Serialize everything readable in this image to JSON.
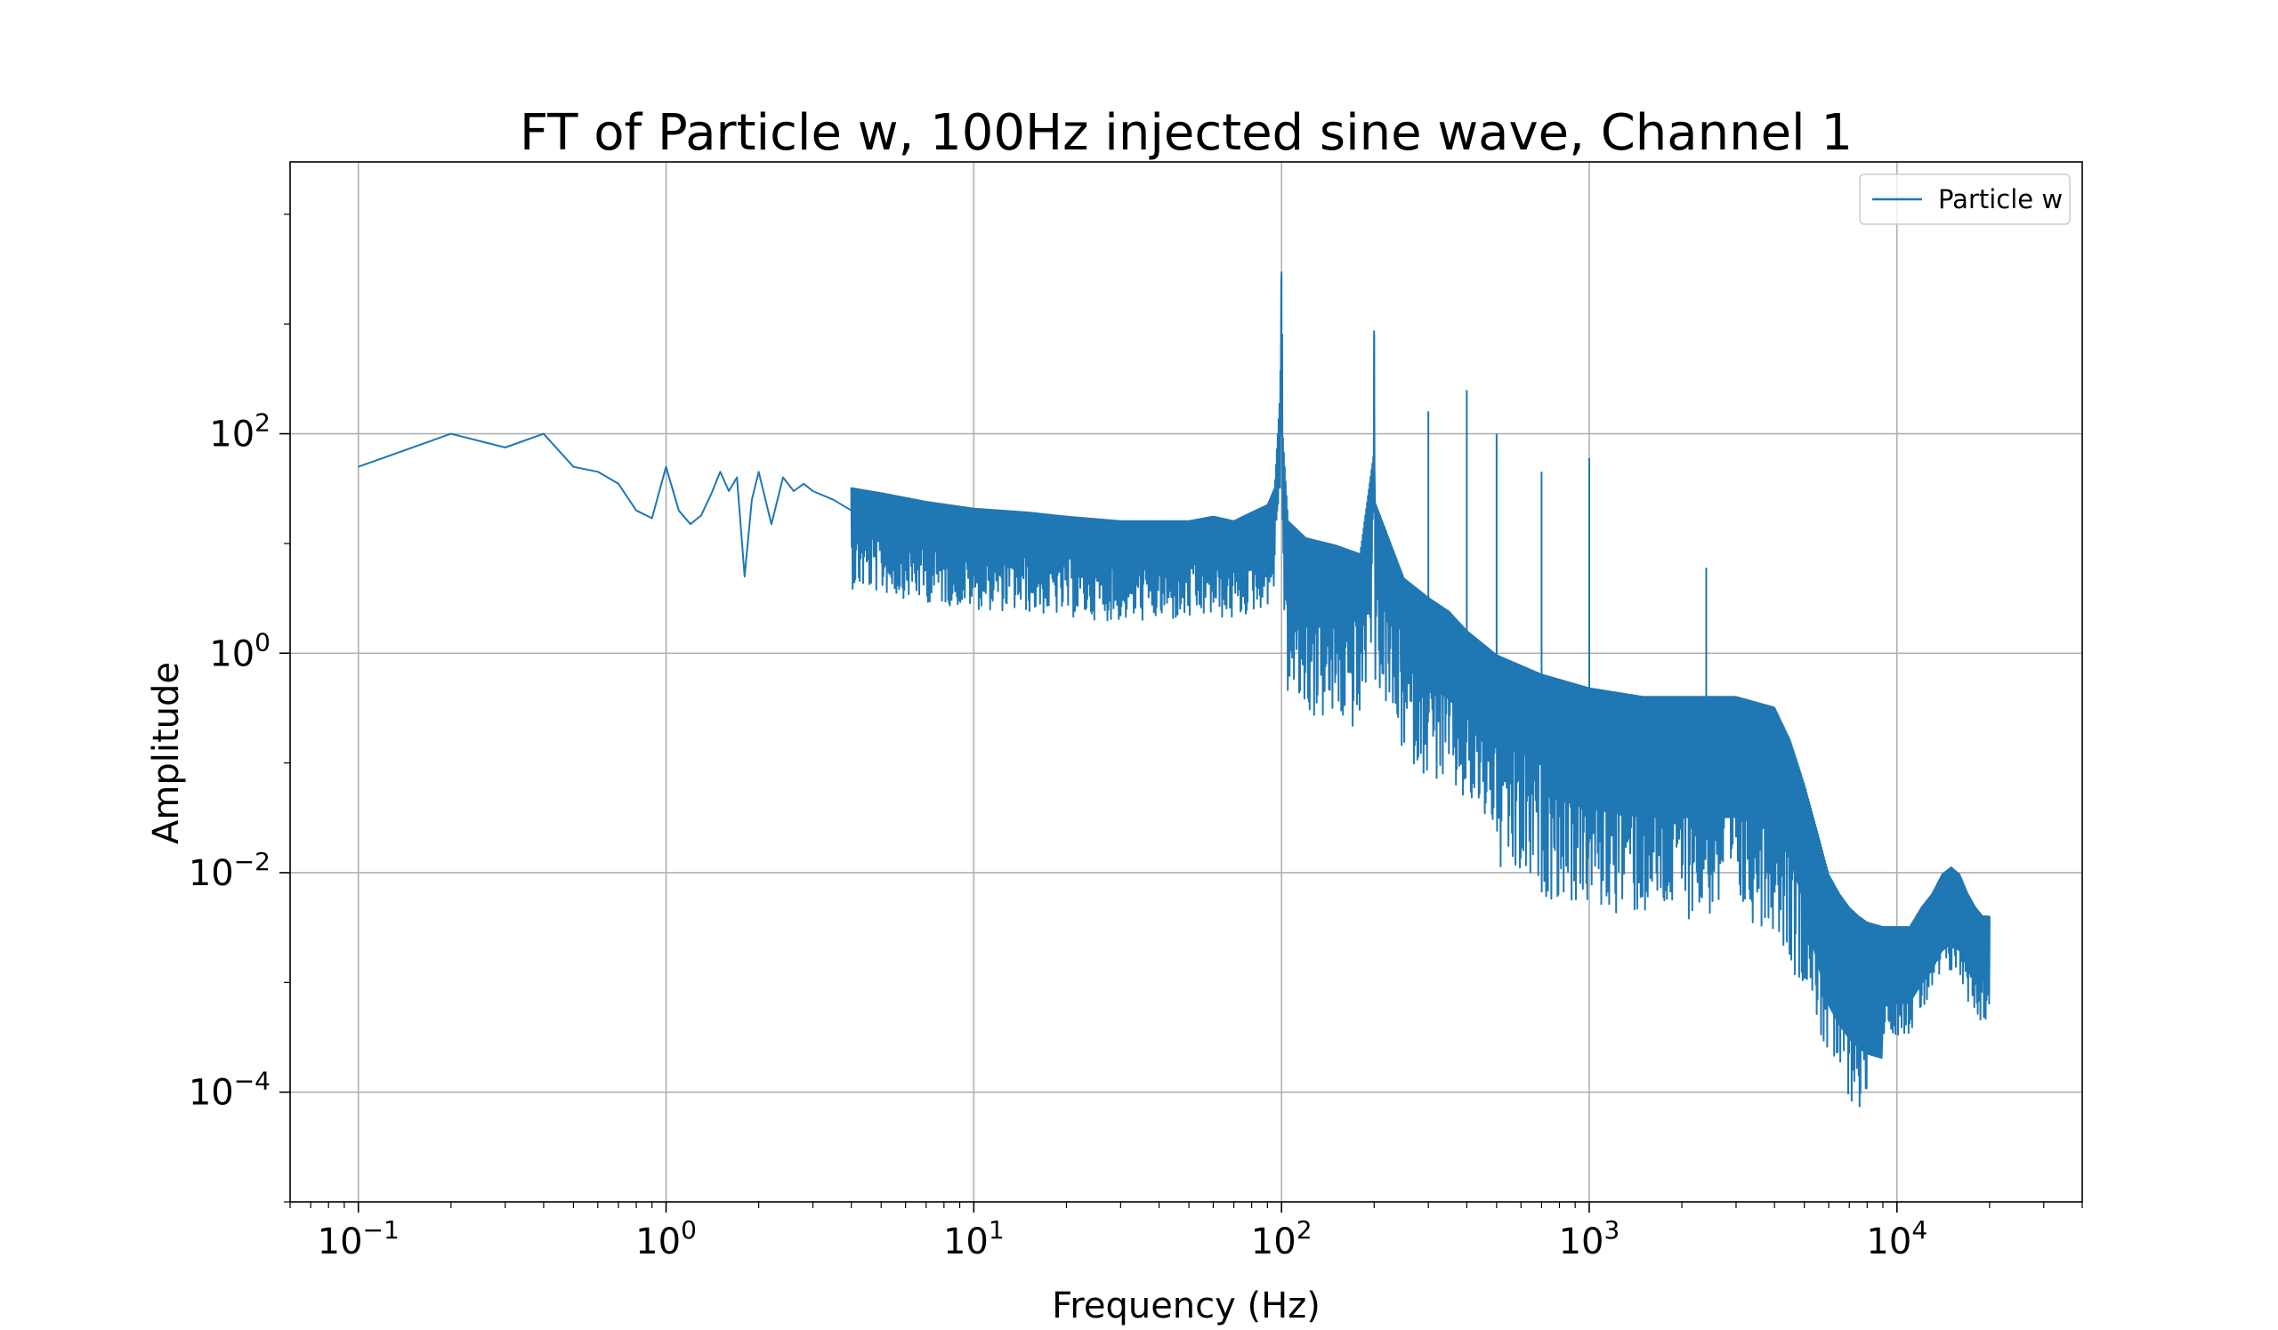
{
  "chart_data": {
    "type": "line",
    "title": "FT of Particle w, 100Hz injected sine wave, Channel 1",
    "xlabel": "Frequency (Hz)",
    "ylabel": "Amplitude",
    "xscale": "log",
    "yscale": "log",
    "xlim": [
      0.06,
      40000
    ],
    "ylim": [
      1e-05,
      30000
    ],
    "grid": true,
    "legend_position": "top-right",
    "x_ticks": [
      {
        "value": 0.1,
        "base": "10",
        "exp": "−1"
      },
      {
        "value": 1,
        "base": "10",
        "exp": "0"
      },
      {
        "value": 10,
        "base": "10",
        "exp": "1"
      },
      {
        "value": 100,
        "base": "10",
        "exp": "2"
      },
      {
        "value": 1000,
        "base": "10",
        "exp": "3"
      },
      {
        "value": 10000,
        "base": "10",
        "exp": "4"
      }
    ],
    "y_ticks": [
      {
        "value": 0.0001,
        "base": "10",
        "exp": "−4"
      },
      {
        "value": 0.01,
        "base": "10",
        "exp": "−2"
      },
      {
        "value": 1,
        "base": "10",
        "exp": "0"
      },
      {
        "value": 100,
        "base": "10",
        "exp": "2"
      }
    ],
    "series": [
      {
        "name": "Particle w",
        "color": "#1f77b4",
        "x": [
          0.1,
          0.2,
          0.3,
          0.4,
          0.5,
          0.6,
          0.7,
          0.8,
          0.9,
          1.0,
          1.1,
          1.2,
          1.3,
          1.4,
          1.5,
          1.6,
          1.7,
          1.8,
          1.9,
          2.0,
          2.2,
          2.4,
          2.6,
          2.8,
          3.0,
          3.5,
          4.0,
          5,
          7,
          10,
          15,
          20,
          30,
          40,
          50,
          60,
          70,
          80,
          90,
          95,
          99,
          100,
          101,
          105,
          120,
          150,
          180,
          199,
          200,
          201,
          250,
          300,
          350,
          400,
          500,
          700,
          1000,
          1500,
          2000,
          2500,
          3000,
          4000,
          4500,
          5000,
          5500,
          6000,
          6500,
          7000,
          7500,
          8000,
          9000,
          10000,
          11000,
          12000,
          13000,
          14000,
          15000,
          16000,
          17000,
          18000,
          19000,
          20000
        ],
        "y": [
          50,
          100,
          75,
          100,
          50,
          45,
          35,
          20,
          17,
          50,
          20,
          15,
          18,
          28,
          45,
          30,
          40,
          5,
          25,
          45,
          15,
          40,
          30,
          35,
          30,
          25,
          20,
          18,
          15,
          13,
          12,
          11,
          10,
          10,
          10,
          11,
          10,
          12,
          14,
          20,
          150,
          3000,
          60,
          10,
          7,
          6,
          5,
          40,
          800,
          15,
          3,
          2,
          1.5,
          1,
          0.6,
          0.4,
          0.3,
          0.25,
          0.25,
          0.25,
          0.25,
          0.2,
          0.1,
          0.04,
          0.015,
          0.006,
          0.004,
          0.003,
          0.0025,
          0.0022,
          0.002,
          0.002,
          0.002,
          0.003,
          0.004,
          0.006,
          0.007,
          0.006,
          0.004,
          0.003,
          0.0025,
          0.0025
        ]
      }
    ]
  }
}
